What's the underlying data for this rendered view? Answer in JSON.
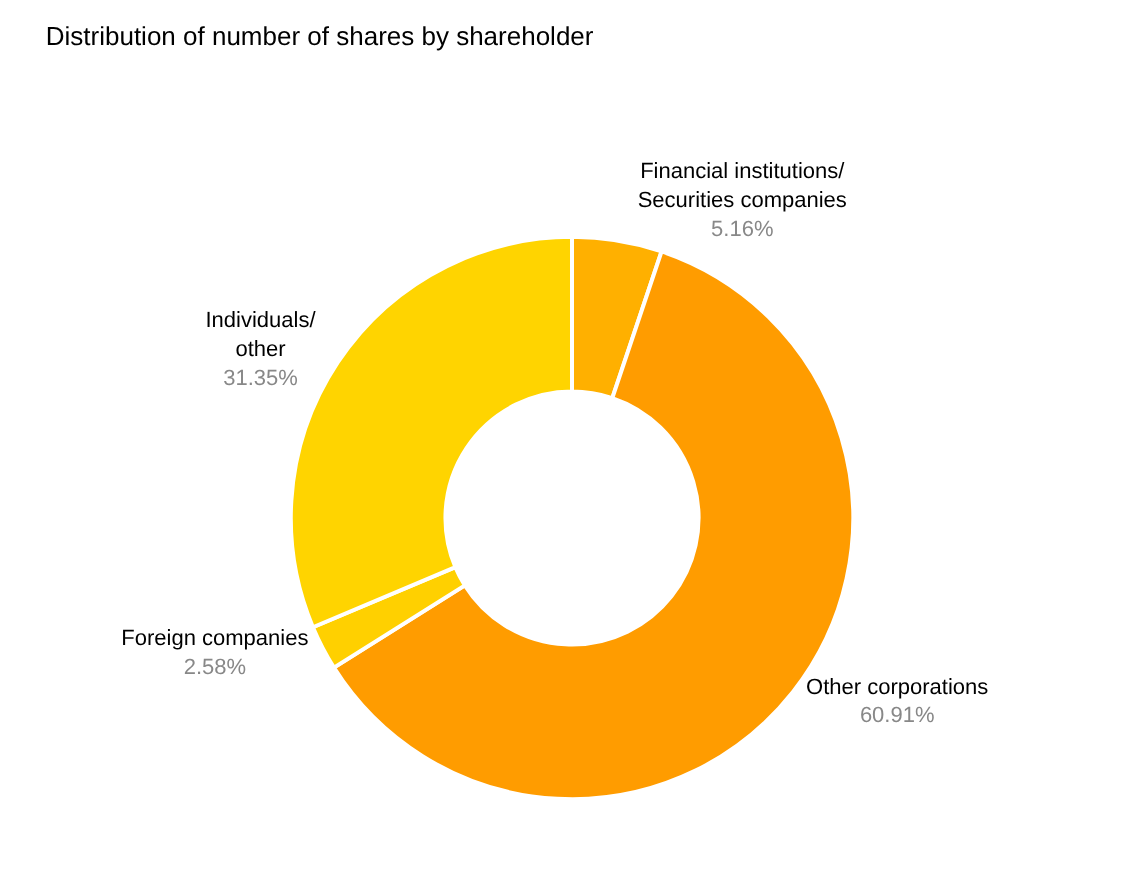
{
  "chart_data": {
    "type": "donut",
    "title": "Distribution of number of shares by shareholder",
    "categories": [
      "Financial institutions/Securities companies",
      "Other corporations",
      "Foreign companies",
      "Individuals/other"
    ],
    "values": [
      5.16,
      60.91,
      2.58,
      31.35
    ],
    "value_labels": [
      "5.16%",
      "60.91%",
      "2.58%",
      "31.35%"
    ],
    "colors": [
      "#ffb000",
      "#ff9c00",
      "#ffd000",
      "#ffd400"
    ],
    "legend": false
  }
}
